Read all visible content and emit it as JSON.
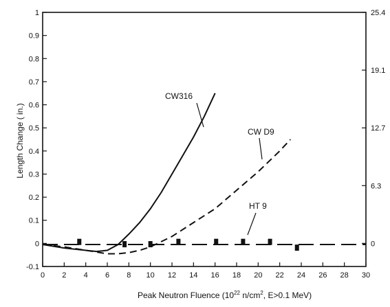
{
  "chart_data": {
    "type": "line",
    "xlabel": "Peak Neutron Fluence (10",
    "xlabel_sup": "22",
    "xlabel_mid": " n/cm",
    "xlabel_sup2": "2",
    "xlabel_end": ", E>0.1 MeV)",
    "ylabel": "Length Change ( in.)",
    "xlim": [
      0,
      30
    ],
    "ylim": [
      -0.1,
      1.0
    ],
    "xticks": [
      "0",
      "2",
      "4",
      "6",
      "8",
      "10",
      "12",
      "14",
      "16",
      "18",
      "20",
      "22",
      "24",
      "26",
      "28",
      "30"
    ],
    "yticks": [
      "-0.1",
      "0",
      "0.1",
      "0.2",
      "0.3",
      "0.4",
      "0.5",
      "0.6",
      "0.7",
      "0.8",
      "0.9",
      "1"
    ],
    "y2ticks": [
      {
        "label": "25.4",
        "at": 1.0
      },
      {
        "label": "19.1",
        "at": 0.75
      },
      {
        "label": "12.7",
        "at": 0.5
      },
      {
        "label": "6.3",
        "at": 0.25
      },
      {
        "label": "0",
        "at": 0.0
      }
    ],
    "series": [
      {
        "name": "CW316",
        "style": "solid",
        "x": [
          0,
          2,
          4,
          5,
          6,
          7,
          8,
          9,
          10,
          11,
          12,
          13,
          14,
          15,
          16
        ],
        "y": [
          -0.005,
          -0.02,
          -0.03,
          -0.035,
          -0.03,
          -0.005,
          0.04,
          0.09,
          0.15,
          0.22,
          0.3,
          0.38,
          0.46,
          0.55,
          0.65
        ]
      },
      {
        "name": "CW D9",
        "style": "dashed",
        "x": [
          0,
          2,
          4,
          6,
          7,
          8,
          9,
          10,
          12,
          14,
          16,
          18,
          20,
          22,
          23
        ],
        "y": [
          -0.005,
          -0.015,
          -0.03,
          -0.045,
          -0.045,
          -0.04,
          -0.03,
          -0.015,
          0.03,
          0.09,
          0.15,
          0.23,
          0.31,
          0.4,
          0.45
        ]
      },
      {
        "name": "HT 9",
        "style": "dash-long",
        "x": [
          0,
          4,
          8,
          12,
          16,
          20,
          24,
          28,
          30
        ],
        "y": [
          -0.005,
          -0.005,
          -0.005,
          -0.005,
          -0.005,
          -0.005,
          -0.005,
          -0.005,
          -0.005
        ]
      }
    ],
    "markers": {
      "x": [
        3.4,
        7.6,
        10.0,
        12.6,
        16.1,
        18.6,
        21.1,
        23.6
      ],
      "y": [
        0.005,
        -0.005,
        -0.005,
        0.005,
        0.005,
        0.005,
        0.005,
        -0.02
      ]
    },
    "grid": false
  }
}
